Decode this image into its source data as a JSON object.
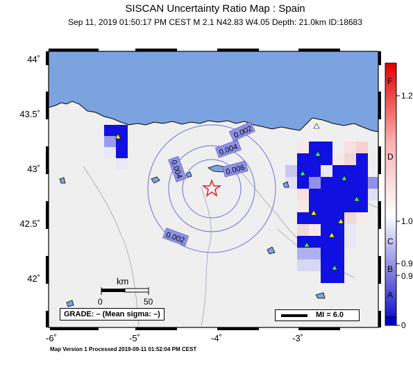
{
  "title": "SISCAN Uncertainty Ratio Map : Spain",
  "subtitle": "Sep 11, 2019 01:50:17 PM CEST   M 2.1   N42.83 W4.05   Depth: 21.0km   ID:18683",
  "footer": "Map Version 1 Processed 2019-09-11 01:52:04 PM CEST",
  "lat_labels": [
    "44˚",
    "43.5˚",
    "43˚",
    "42.5˚",
    "42˚"
  ],
  "lon_labels": [
    "-6˚",
    "-5˚",
    "-4˚",
    "-3˚"
  ],
  "contours": [
    "0.002",
    "0.004",
    "0.006",
    "0.004",
    "0.002"
  ],
  "scale_bar": {
    "unit": "km",
    "start": "0",
    "end": "50"
  },
  "grade_text": "GRADE: – (Mean sigma: –)",
  "legend_text": "MI = 6.0",
  "colorbar": {
    "letters": [
      "F",
      "D",
      "C",
      "B",
      "A"
    ],
    "values": [
      "1.2",
      "1.0",
      "0.9",
      "0.9",
      "0"
    ]
  },
  "epicenter": {
    "lat": 42.83,
    "lon": -4.05
  },
  "colors": {
    "sea": "#7ba3e0",
    "land": "#efefef",
    "epicenter": "#e02020",
    "contour": "#6b6fd8",
    "high": "#e01010",
    "low": "#0000d0"
  }
}
